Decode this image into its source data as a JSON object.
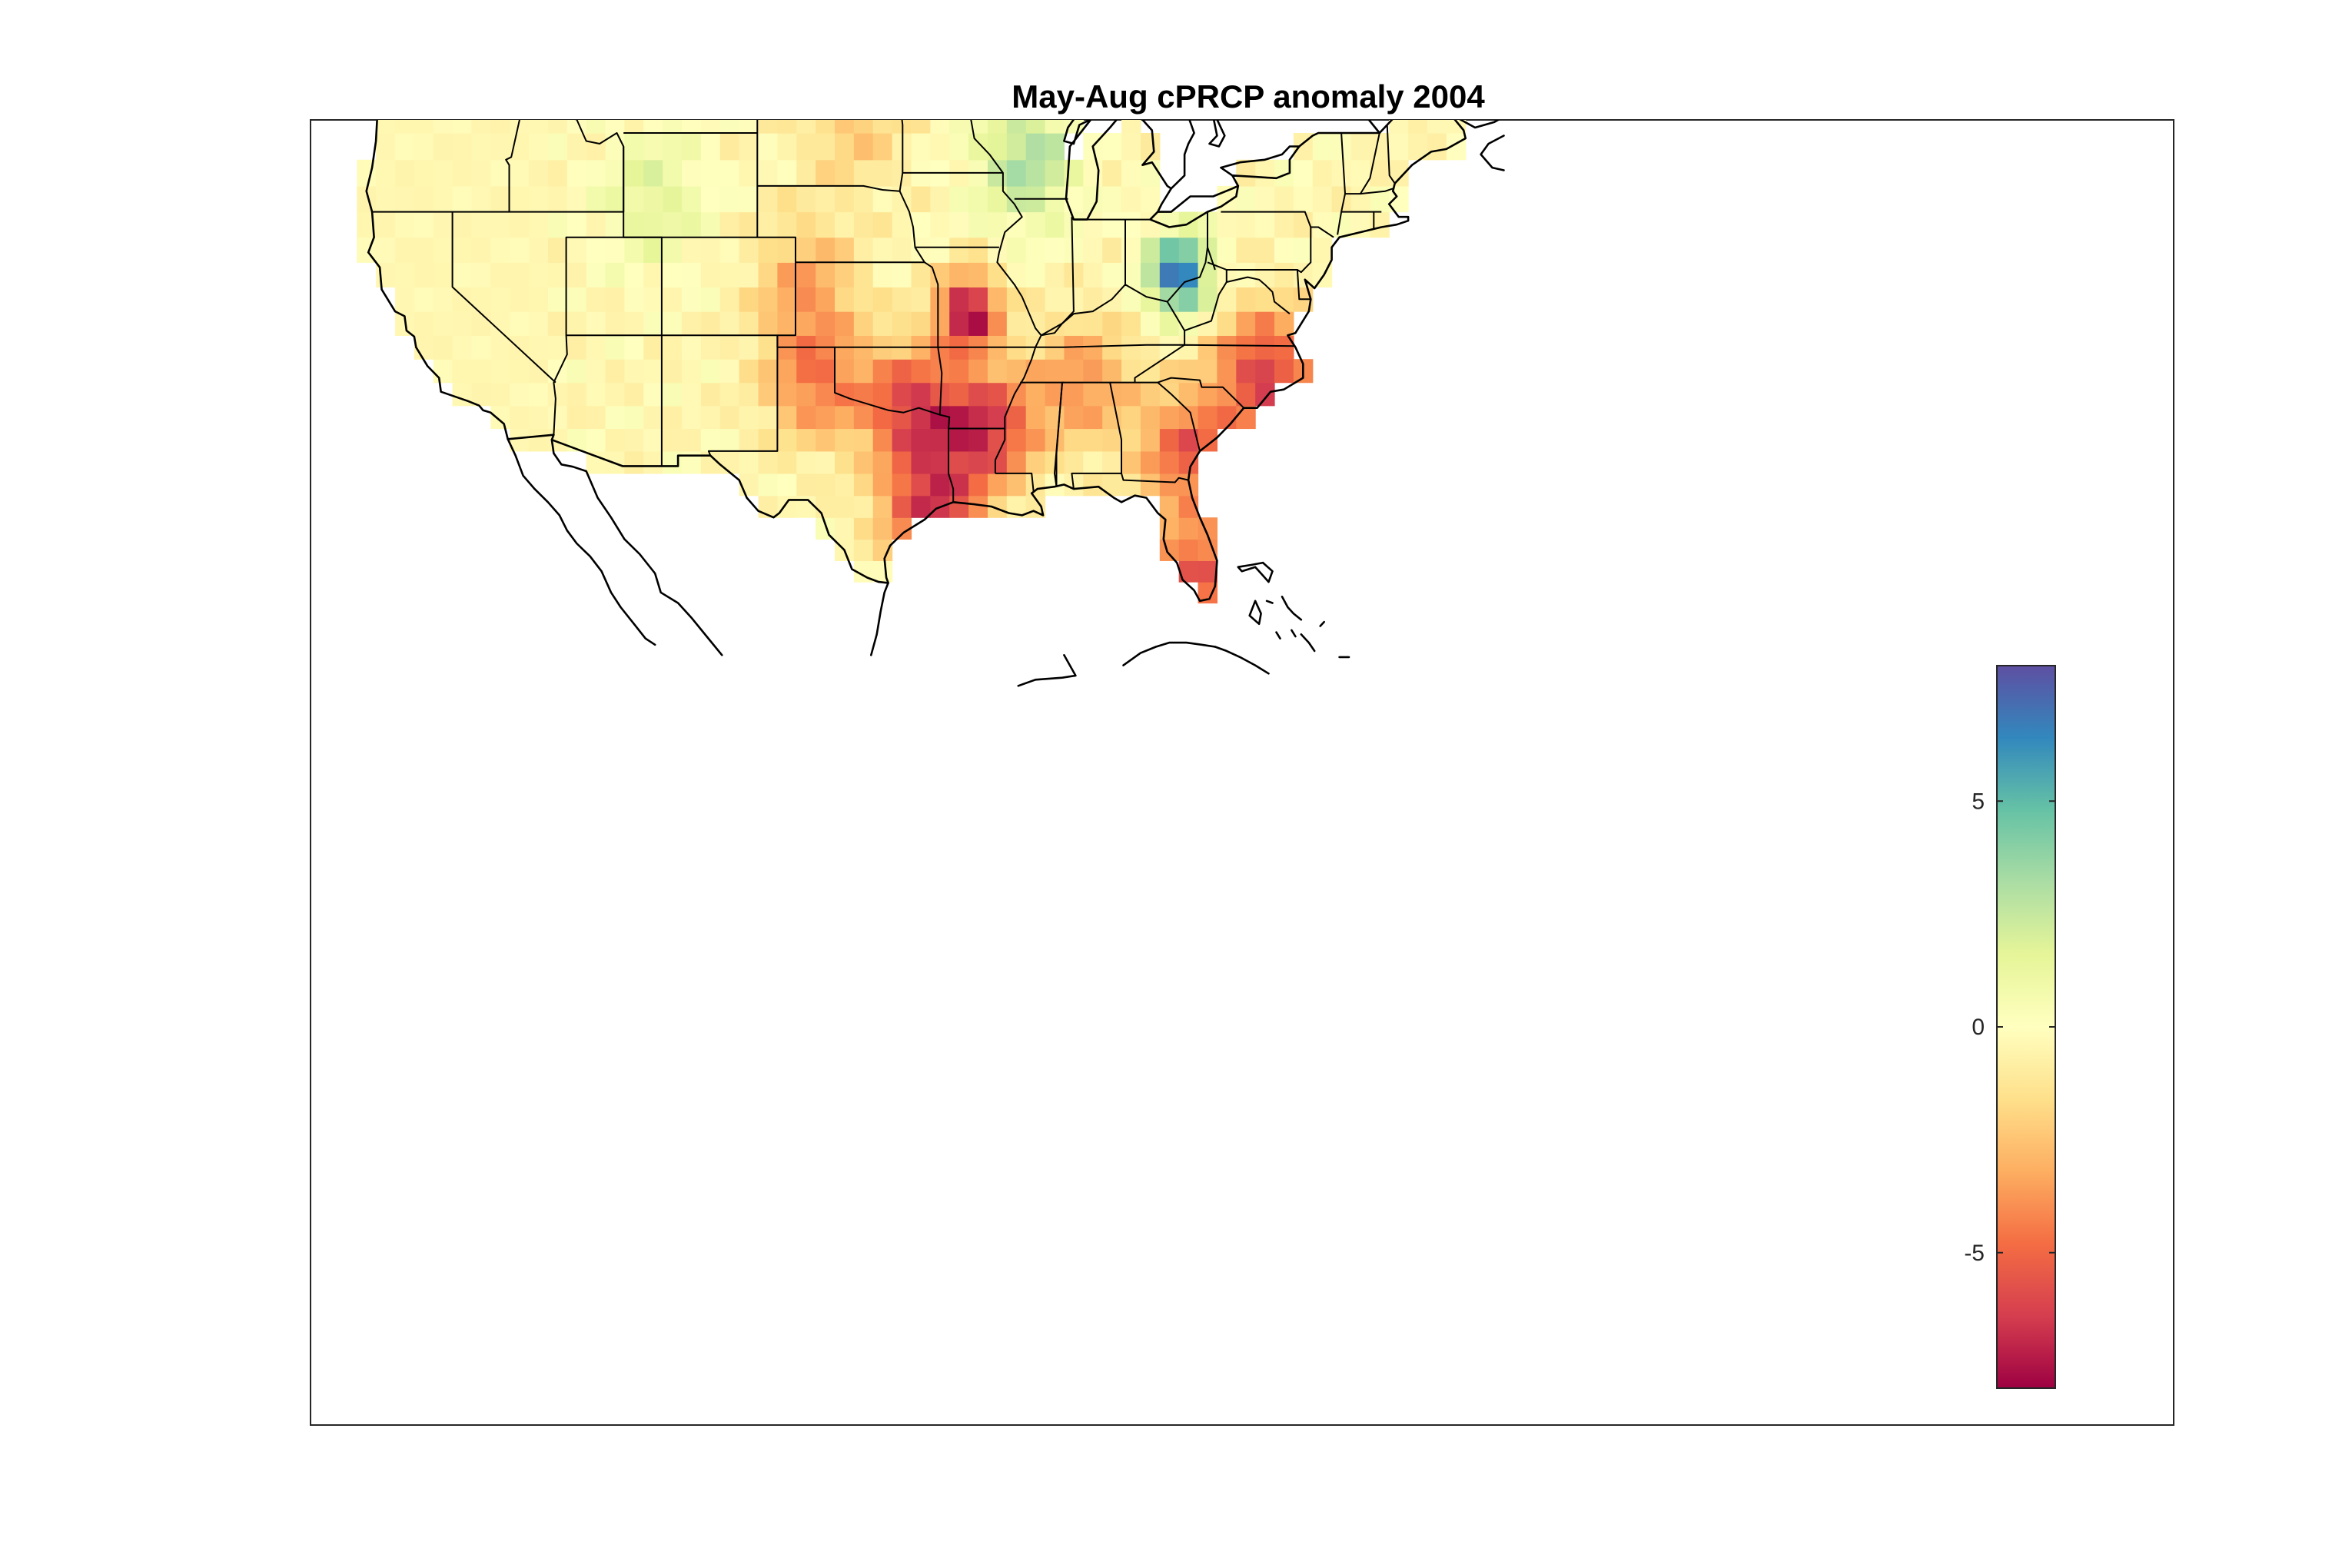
{
  "title": "May-Aug cPRCP anomaly 2004",
  "colorbar": {
    "colormap": "Spectral",
    "range": [
      -8,
      8
    ],
    "ticks": [
      {
        "value": 5,
        "label": "5"
      },
      {
        "value": 0,
        "label": "0"
      },
      {
        "value": -5,
        "label": "-5"
      }
    ],
    "stops": [
      "#9e0142",
      "#d53e4f",
      "#f46d43",
      "#fdae61",
      "#fee08b",
      "#ffffbf",
      "#e6f598",
      "#abdda4",
      "#66c2a5",
      "#3288bd",
      "#5e4fa2"
    ]
  },
  "map": {
    "region": "Contiguous United States",
    "projection": "Mercator",
    "lon_range": [
      -127.5,
      -65
    ],
    "lat_range": [
      22.5,
      51.5
    ],
    "grid_resolution_deg": 1,
    "anomaly_features": [
      {
        "name": "Ohio / West Virginia wet anomaly",
        "lon": -82.0,
        "lat": 39.5,
        "value": 7.5
      },
      {
        "name": "Wisconsin wet anomaly",
        "lon": -90.0,
        "lat": 44.0,
        "value": 3.5
      },
      {
        "name": "Wyoming / Idaho wet anomaly",
        "lon": -109.5,
        "lat": 42.5,
        "value": 2.0
      },
      {
        "name": "Missouri dry anomaly",
        "lon": -93.0,
        "lat": 38.0,
        "value": -7.5
      },
      {
        "name": "Arkansas / Louisiana dry anomaly",
        "lon": -92.0,
        "lat": 33.0,
        "value": -6.0
      },
      {
        "name": "North Carolina dry anomaly",
        "lon": -77.5,
        "lat": 35.5,
        "value": -6.0
      },
      {
        "name": "Georgia / Carolinas dry anomaly",
        "lon": -81.5,
        "lat": 32.0,
        "value": -5.0
      },
      {
        "name": "South Florida dry anomaly",
        "lon": -81.0,
        "lat": 26.5,
        "value": -5.0
      },
      {
        "name": "Upper Texas coast dry anomaly",
        "lon": -95.0,
        "lat": 29.5,
        "value": -6.0
      },
      {
        "name": "Red River dry anomaly",
        "lon": -96.0,
        "lat": 34.0,
        "value": -5.5
      },
      {
        "name": "Southern Plains dry anomaly",
        "lon": -101.0,
        "lat": 35.0,
        "value": -4.0
      },
      {
        "name": "Colorado / Kansas dry anomaly",
        "lon": -101.5,
        "lat": 39.0,
        "value": -3.0
      },
      {
        "name": "Dakotas dry anomaly",
        "lon": -99.0,
        "lat": 45.5,
        "value": -2.0
      },
      {
        "name": "Mid-South dry anomaly",
        "lon": -87.0,
        "lat": 35.0,
        "value": -3.5
      }
    ]
  }
}
